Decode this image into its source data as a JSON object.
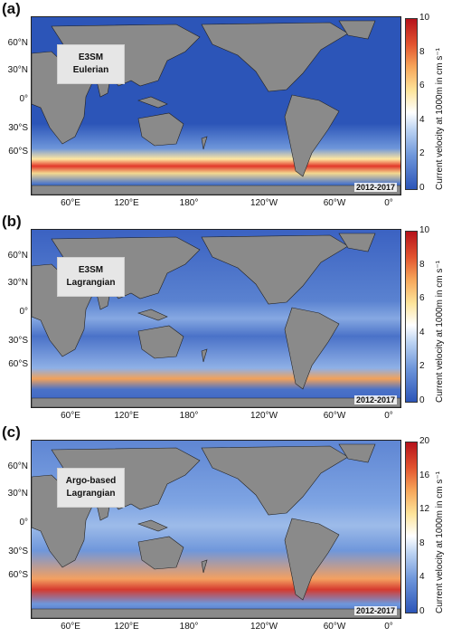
{
  "panels": [
    {
      "label": "(a)",
      "model_line1": "E3SM",
      "model_line2": "Eulerian",
      "period": "2012-2017",
      "cbar_ticks": [
        "0",
        "2",
        "4",
        "6",
        "8",
        "10"
      ],
      "cbar_max": 10
    },
    {
      "label": "(b)",
      "model_line1": "E3SM",
      "model_line2": "Lagrangian",
      "period": "2012-2017",
      "cbar_ticks": [
        "0",
        "2",
        "4",
        "6",
        "8",
        "10"
      ],
      "cbar_max": 10
    },
    {
      "label": "(c)",
      "model_line1": "Argo-based",
      "model_line2": "Lagrangian",
      "period": "2012-2017",
      "cbar_ticks": [
        "0",
        "4",
        "8",
        "12",
        "16",
        "20"
      ],
      "cbar_max": 20
    }
  ],
  "lat_labels": [
    "60°N",
    "30°N",
    "0°",
    "30°S",
    "60°S"
  ],
  "lon_labels": [
    "60°E",
    "120°E",
    "180°",
    "120°W",
    "60°W",
    "0°"
  ],
  "colorbar_title": "Current velocity at 1000m in cm s⁻¹",
  "colors": {
    "land": "#8a8a8a",
    "low": "#2c55b8",
    "mid": "#ffffff",
    "high": "#c8102e",
    "white_patch": "#ffffff"
  }
}
